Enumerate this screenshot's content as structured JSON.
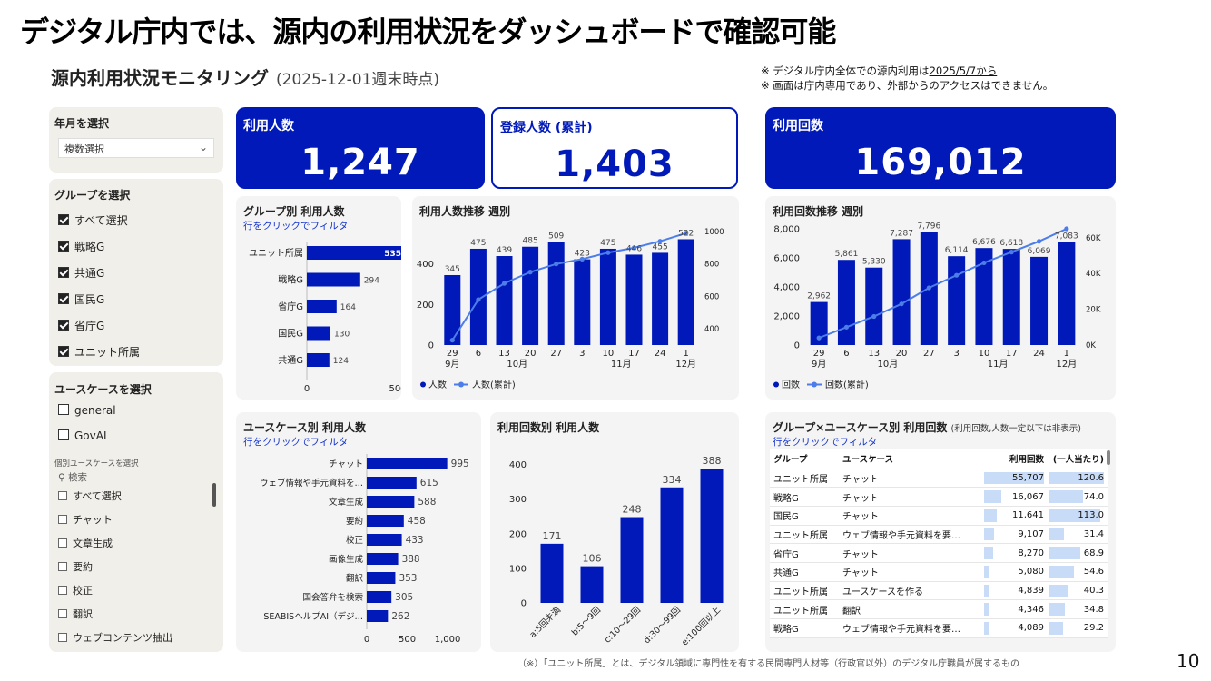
{
  "slide_title": "デジタル庁内では、源内の利用状況をダッシュボードで確認可能",
  "dashboard_title": "源内利用状況モニタリング",
  "dashboard_date": "(2025-12-01週末時点)",
  "notes": {
    "line1_prefix": "※ デジタル庁内全体での源内利用は",
    "line1_date": "2025/5/7から",
    "line2": "※ 画面は庁内専用であり、外部からのアクセスはできません。"
  },
  "footer_note": "（※）「ユニット所属」とは、デジタル領域に専門性を有する民間専門人材等（行政官以外）のデジタル庁職員が属するもの",
  "page_number": "10",
  "filters": {
    "month": {
      "title": "年月を選択",
      "value": "複数選択"
    },
    "group": {
      "title": "グループを選択",
      "items": [
        {
          "label": "すべて選択"
        },
        {
          "label": "戦略G"
        },
        {
          "label": "共通G"
        },
        {
          "label": "国民G"
        },
        {
          "label": "省庁G"
        },
        {
          "label": "ユニット所属"
        }
      ]
    },
    "usecase": {
      "title": "ユースケースを選択",
      "items": [
        {
          "label": "general"
        },
        {
          "label": "GovAI"
        }
      ],
      "sub_label": "個別ユースケースを選択",
      "search_placeholder": "検索",
      "list": [
        {
          "label": "すべて選択"
        },
        {
          "label": "チャット"
        },
        {
          "label": "文章生成"
        },
        {
          "label": "要約"
        },
        {
          "label": "校正"
        },
        {
          "label": "翻訳"
        },
        {
          "label": "ウェブコンテンツ抽出"
        }
      ]
    }
  },
  "kpis": {
    "users": {
      "label": "利用人数",
      "value": "1,247"
    },
    "registered": {
      "label": "登録人数 (累計)",
      "value": "1,403"
    },
    "uses": {
      "label": "利用回数",
      "value": "169,012"
    }
  },
  "colors": {
    "primary": "#0019b8",
    "line": "#4d7de8",
    "table_bar": "#c9dcf7"
  },
  "panels": {
    "group_users": {
      "title": "グループ別 利用人数",
      "sub": "行をクリックでフィルタ"
    },
    "weekly_users": {
      "title": "利用人数推移 週別"
    },
    "weekly_uses": {
      "title": "利用回数推移 週別"
    },
    "usecase_users": {
      "title": "ユースケース別 利用人数",
      "sub": "行をクリックでフィルタ"
    },
    "freq_users": {
      "title": "利用回数別 利用人数"
    },
    "table": {
      "title": "グループ×ユースケース別 利用回数",
      "title_small": "(利用回数,人数一定以下は非表示)",
      "sub": "行をクリックでフィルタ"
    }
  },
  "chart_data": [
    {
      "id": "group_users",
      "type": "bar",
      "orientation": "horizontal",
      "categories": [
        "ユニット所属",
        "戦略G",
        "省庁G",
        "国民G",
        "共通G"
      ],
      "values": [
        535,
        294,
        164,
        130,
        124
      ],
      "xlim": [
        0,
        600
      ],
      "xticks": [
        "0",
        "500"
      ]
    },
    {
      "id": "weekly_users",
      "type": "bar",
      "x": [
        "29",
        "6",
        "13",
        "20",
        "27",
        "3",
        "10",
        "17",
        "24",
        "1"
      ],
      "month_labels": [
        "9月",
        "10月",
        "11月",
        "12月"
      ],
      "series": [
        {
          "name": "人数",
          "values": [
            345,
            475,
            439,
            485,
            509,
            423,
            475,
            446,
            455,
            522
          ]
        },
        {
          "name": "人数(累計)",
          "type": "line",
          "values": [
            330,
            580,
            680,
            750,
            800,
            830,
            870,
            900,
            940,
            990
          ]
        }
      ],
      "ylim": [
        0,
        560
      ],
      "yticks": [
        "0",
        "200",
        "400"
      ],
      "y2lim": [
        300,
        1000
      ],
      "y2ticks": [
        "400",
        "600",
        "800",
        "1000"
      ]
    },
    {
      "id": "weekly_uses",
      "type": "bar",
      "x": [
        "29",
        "6",
        "13",
        "20",
        "27",
        "3",
        "10",
        "17",
        "24",
        "1"
      ],
      "month_labels": [
        "9月",
        "10月",
        "11月",
        "12月"
      ],
      "series": [
        {
          "name": "回数",
          "values": [
            2962,
            5861,
            5330,
            7287,
            7796,
            6114,
            6676,
            6618,
            6069,
            7083
          ]
        },
        {
          "name": "回数(累計)",
          "type": "line",
          "values": [
            4000,
            10000,
            16000,
            23000,
            32000,
            39000,
            46000,
            52000,
            58000,
            65000
          ]
        }
      ],
      "value_labels": [
        "2,962",
        "5,861",
        "5,330",
        "7,287",
        "7,796",
        "6,114",
        "6,676",
        "6,618",
        "6,069",
        "7,083"
      ],
      "ylim": [
        0,
        8000
      ],
      "yticks": [
        "0",
        "2,000",
        "4,000",
        "6,000",
        "8,000"
      ],
      "y2lim": [
        0,
        65000
      ],
      "y2ticks": [
        "0K",
        "20K",
        "40K",
        "60K"
      ]
    },
    {
      "id": "usecase_users",
      "type": "bar",
      "orientation": "horizontal",
      "categories": [
        "チャット",
        "ウェブ情報や手元資料を…",
        "文章生成",
        "要約",
        "校正",
        "画像生成",
        "翻訳",
        "国会答弁を検索",
        "SEABISヘルプAI（デジ…"
      ],
      "values": [
        995,
        615,
        588,
        458,
        433,
        388,
        353,
        305,
        262
      ],
      "xlim": [
        0,
        1100
      ],
      "xticks": [
        "0",
        "500",
        "1,000"
      ]
    },
    {
      "id": "freq_users",
      "type": "bar",
      "categories": [
        "a:5回未満",
        "b:5〜9回",
        "c:10〜29回",
        "d:30〜99回",
        "e:100回以上"
      ],
      "values": [
        171,
        106,
        248,
        334,
        388
      ],
      "ylim": [
        0,
        420
      ],
      "yticks": [
        "0",
        "100",
        "200",
        "300",
        "400"
      ]
    },
    {
      "id": "group_usecase_table",
      "type": "table",
      "columns": [
        "グループ",
        "ユースケース",
        "利用回数",
        "(一人当たり)"
      ],
      "rows": [
        {
          "group": "ユニット所属",
          "usecase": "チャット",
          "count": "55,707",
          "count_v": 55707,
          "per": "120.6",
          "per_v": 120.6
        },
        {
          "group": "戦略G",
          "usecase": "チャット",
          "count": "16,067",
          "count_v": 16067,
          "per": "74.0",
          "per_v": 74.0
        },
        {
          "group": "国民G",
          "usecase": "チャット",
          "count": "11,641",
          "count_v": 11641,
          "per": "113.0",
          "per_v": 113.0
        },
        {
          "group": "ユニット所属",
          "usecase": "ウェブ情報や手元資料を要…",
          "count": "9,107",
          "count_v": 9107,
          "per": "31.4",
          "per_v": 31.4
        },
        {
          "group": "省庁G",
          "usecase": "チャット",
          "count": "8,270",
          "count_v": 8270,
          "per": "68.9",
          "per_v": 68.9
        },
        {
          "group": "共通G",
          "usecase": "チャット",
          "count": "5,080",
          "count_v": 5080,
          "per": "54.6",
          "per_v": 54.6
        },
        {
          "group": "ユニット所属",
          "usecase": "ユースケースを作る",
          "count": "4,839",
          "count_v": 4839,
          "per": "40.3",
          "per_v": 40.3
        },
        {
          "group": "ユニット所属",
          "usecase": "翻訳",
          "count": "4,346",
          "count_v": 4346,
          "per": "34.8",
          "per_v": 34.8
        },
        {
          "group": "戦略G",
          "usecase": "ウェブ情報や手元資料を要…",
          "count": "4,089",
          "count_v": 4089,
          "per": "29.2",
          "per_v": 29.2
        }
      ]
    }
  ]
}
